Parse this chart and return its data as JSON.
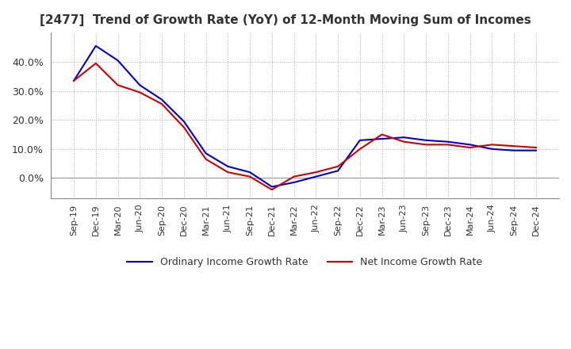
{
  "title": "[2477]  Trend of Growth Rate (YoY) of 12-Month Moving Sum of Incomes",
  "title_fontsize": 11,
  "background_color": "#ffffff",
  "grid_color": "#aaaaaa",
  "ordinary_color": "#0000cc",
  "net_color": "#cc0000",
  "legend_ordinary": "Ordinary Income Growth Rate",
  "legend_net": "Net Income Growth Rate",
  "x_labels": [
    "Sep-19",
    "Dec-19",
    "Mar-20",
    "Jun-20",
    "Sep-20",
    "Dec-20",
    "Mar-21",
    "Jun-21",
    "Sep-21",
    "Dec-21",
    "Mar-22",
    "Jun-22",
    "Sep-22",
    "Dec-22",
    "Mar-23",
    "Jun-23",
    "Sep-23",
    "Dec-23",
    "Mar-24",
    "Jun-24",
    "Sep-24",
    "Dec-24"
  ],
  "ordinary_income": [
    0.335,
    0.455,
    0.405,
    0.32,
    0.27,
    0.195,
    0.085,
    0.04,
    0.02,
    -0.03,
    -0.015,
    0.005,
    0.025,
    0.13,
    0.135,
    0.14,
    0.13,
    0.125,
    0.115,
    0.1,
    0.095,
    0.095
  ],
  "net_income": [
    0.335,
    0.395,
    0.32,
    0.295,
    0.255,
    0.175,
    0.065,
    0.02,
    0.005,
    -0.04,
    0.005,
    0.02,
    0.04,
    0.1,
    0.15,
    0.125,
    0.115,
    0.115,
    0.105,
    0.115,
    0.11,
    0.105
  ],
  "ylim": [
    -0.07,
    0.5
  ],
  "yticks": [
    0.0,
    0.1,
    0.2,
    0.3,
    0.4
  ]
}
